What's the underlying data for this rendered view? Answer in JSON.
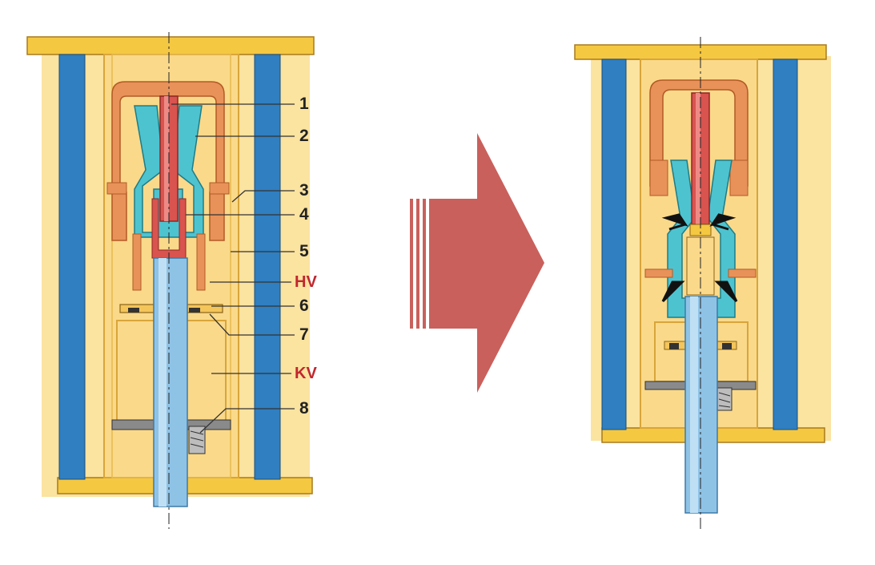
{
  "diagram": {
    "labels": [
      {
        "id": "1",
        "text": "1"
      },
      {
        "id": "2",
        "text": "2"
      },
      {
        "id": "3",
        "text": "3"
      },
      {
        "id": "4",
        "text": "4"
      },
      {
        "id": "5",
        "text": "5"
      },
      {
        "id": "hv",
        "text": "HV"
      },
      {
        "id": "6",
        "text": "6"
      },
      {
        "id": "7",
        "text": "7"
      },
      {
        "id": "kv",
        "text": "KV"
      },
      {
        "id": "8",
        "text": "8"
      }
    ],
    "colors": {
      "housing_fill": "#fbe3a0",
      "housing_edge": "#d9a53a",
      "cap": "#f5c842",
      "insulator": "#2f7fc1",
      "rod_blue": "#8fc3e6",
      "pin_red": "#d9534f",
      "contact_orange": "#e8925a",
      "cone_teal": "#4ec3d0",
      "arrow": "#c9605c",
      "label_red": "#c0272d"
    },
    "arrow_icon": "right-arrow-icon"
  }
}
